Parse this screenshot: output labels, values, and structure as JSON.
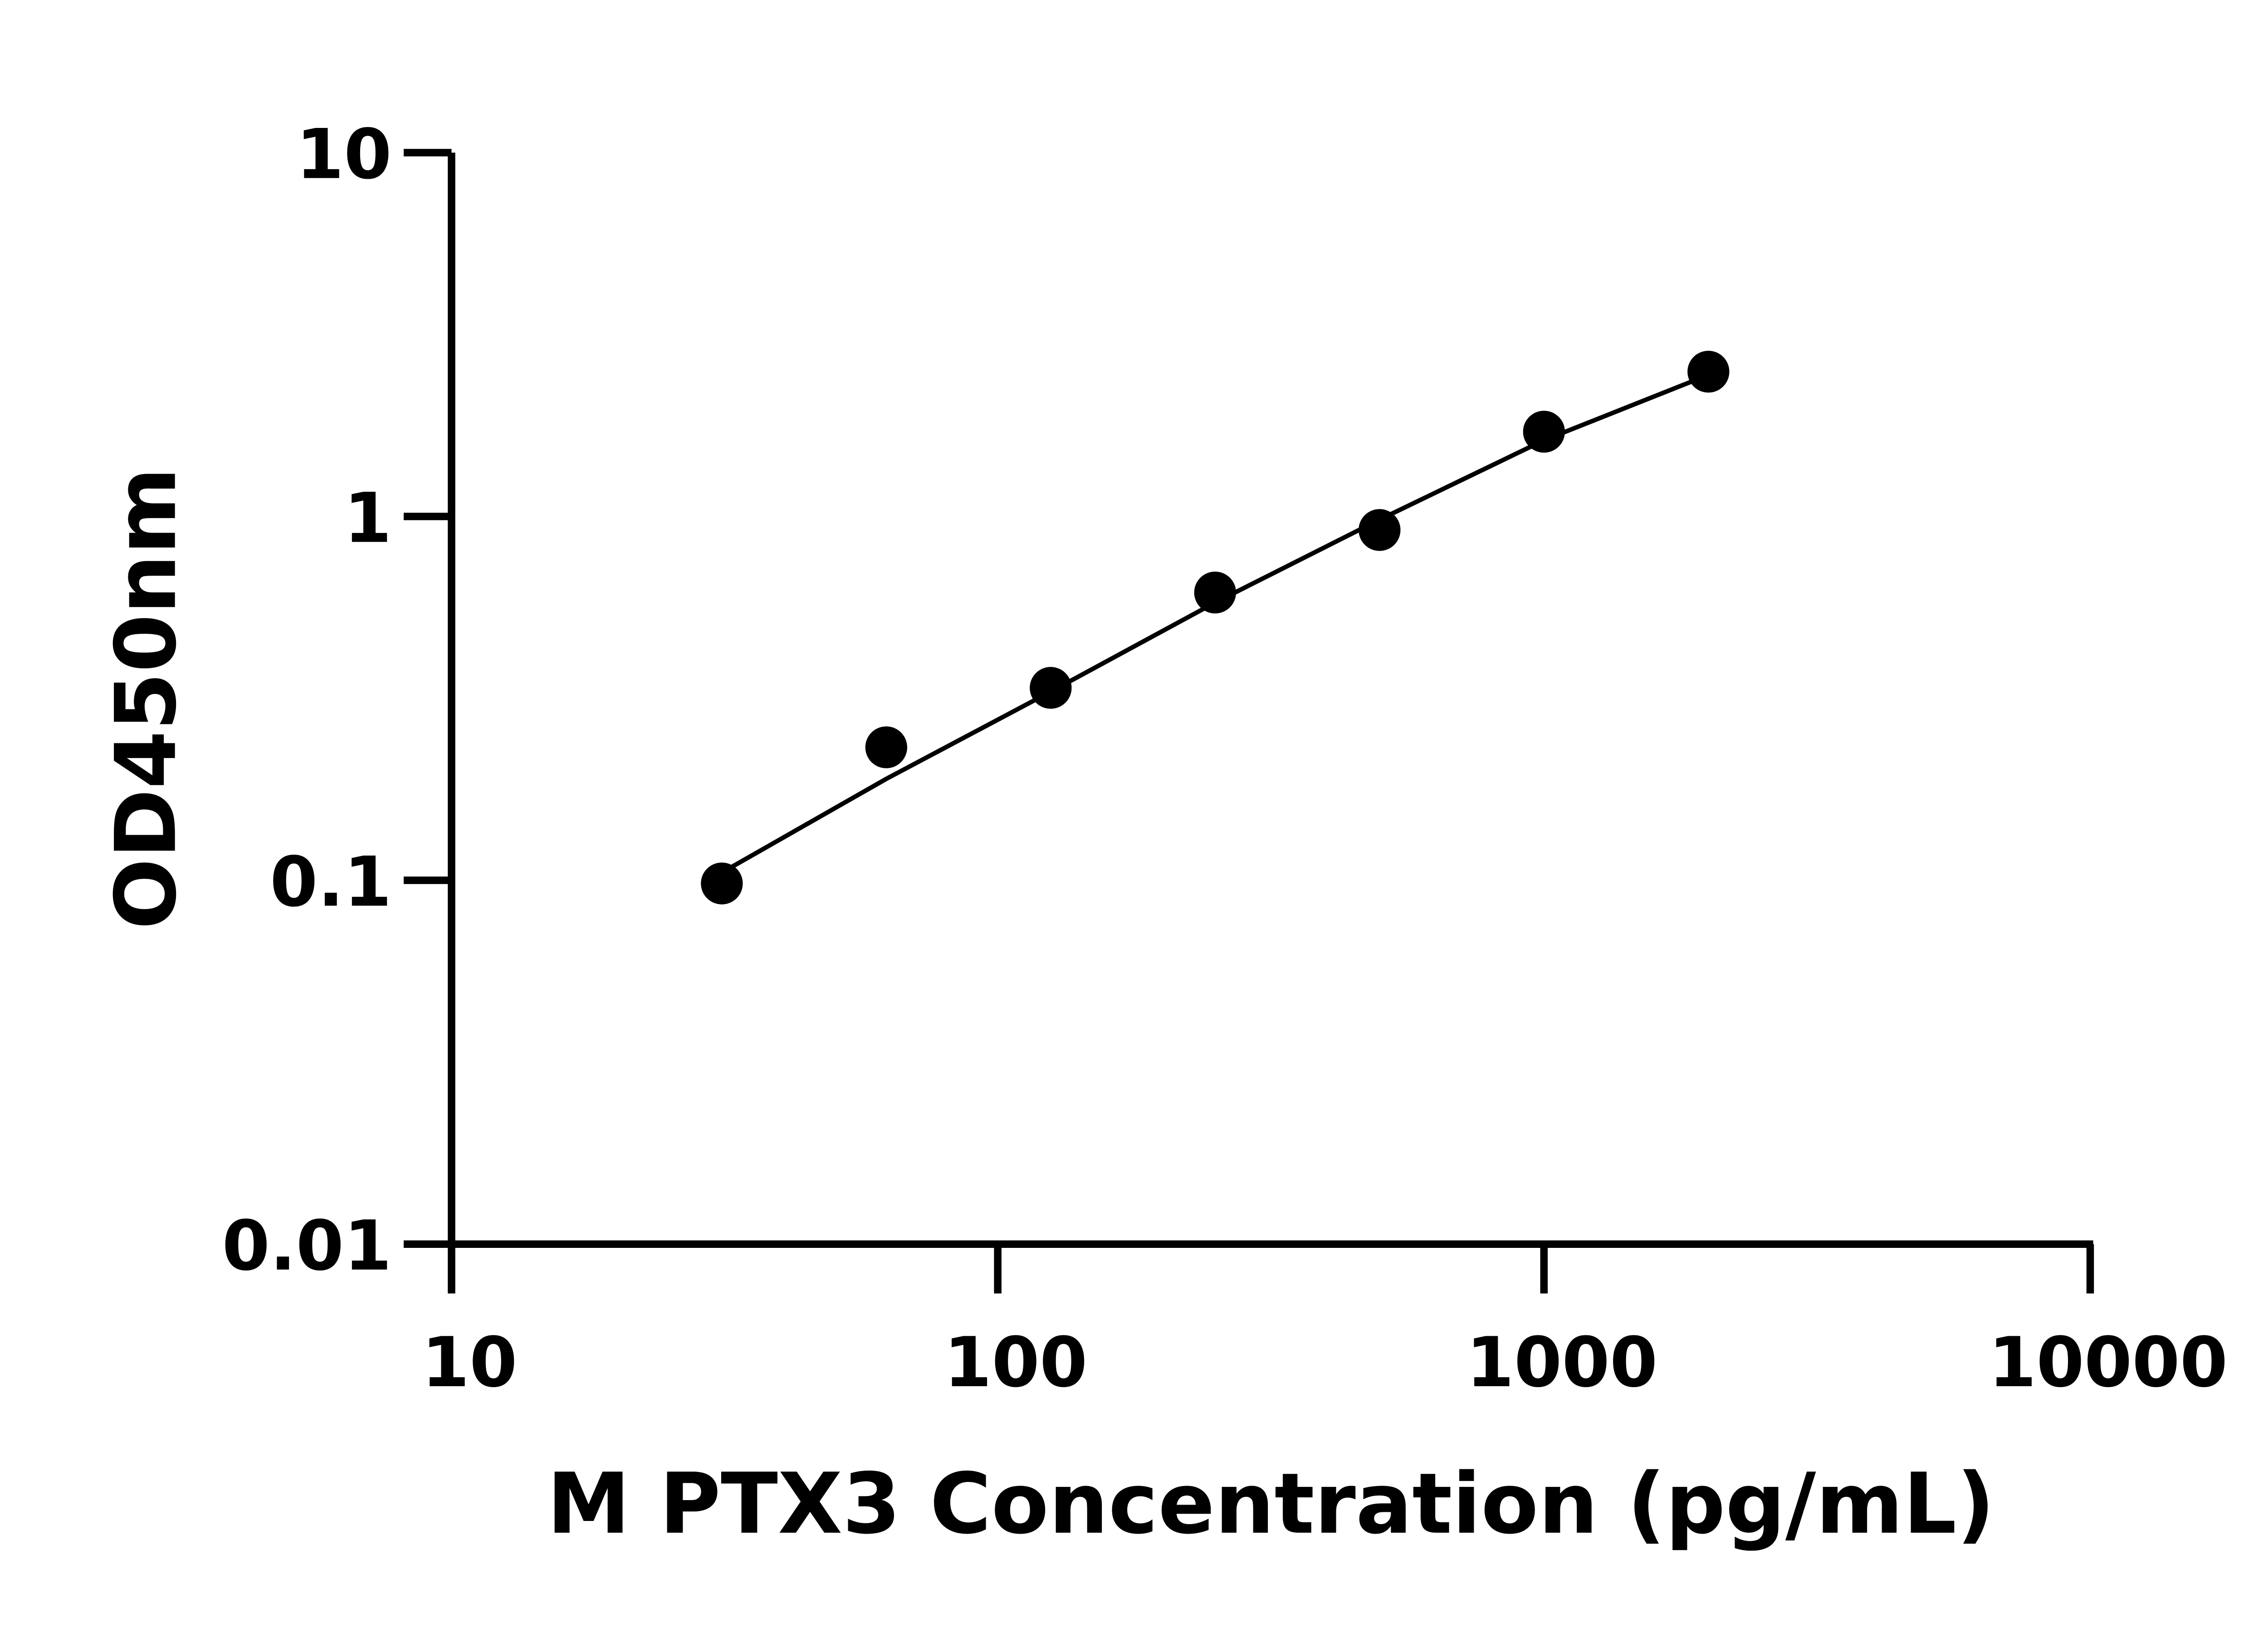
{
  "chart_data": {
    "type": "scatter",
    "title": "",
    "xlabel": "M PTX3 Concentration (pg/mL)",
    "ylabel": "OD450nm",
    "x_scale": "log",
    "y_scale": "log",
    "xlim": [
      10,
      10000
    ],
    "ylim": [
      0.01,
      10
    ],
    "x_ticks": [
      10,
      100,
      1000,
      10000
    ],
    "x_tick_labels": [
      "10",
      "100",
      "1000",
      "10000"
    ],
    "y_ticks": [
      0.01,
      0.1,
      1,
      10
    ],
    "y_tick_labels": [
      "0.01",
      "0.1",
      "1",
      "10"
    ],
    "grid": false,
    "legend": "none",
    "color": "#000000",
    "series": [
      {
        "x": [
          31.25,
          62.5,
          125,
          250,
          500,
          1000,
          2000
        ],
        "y": [
          0.098,
          0.232,
          0.338,
          0.618,
          0.918,
          1.71,
          2.5
        ]
      }
    ],
    "fit_curve": {
      "x": [
        31.25,
        62.5,
        125,
        250,
        500,
        1000,
        2000
      ],
      "y": [
        0.105,
        0.19,
        0.33,
        0.58,
        0.98,
        1.62,
        2.45
      ]
    }
  }
}
